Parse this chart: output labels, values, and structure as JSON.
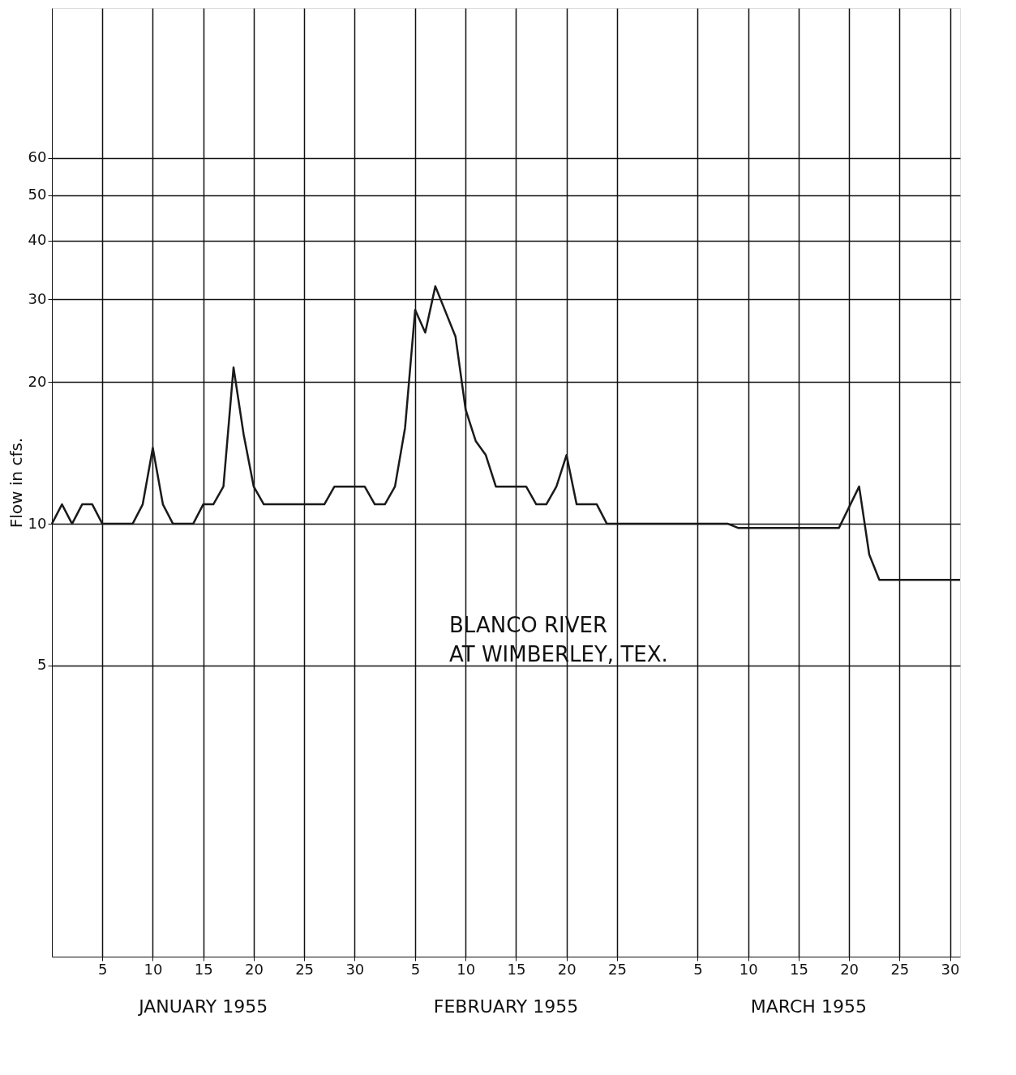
{
  "chart_data": {
    "type": "line",
    "title": "BLANCO RIVER\nAT WIMBERLEY, TEX.",
    "ylabel": "Flow in cfs.",
    "log": true,
    "grid": true,
    "line_style": "solid",
    "xlim": [
      "1954-12-31",
      "1955-03-31"
    ],
    "ylim": [
      1.2,
      125
    ],
    "xticks": [
      {
        "value": "1955-01-05",
        "label": "5"
      },
      {
        "value": "1955-01-10",
        "label": "10"
      },
      {
        "value": "1955-01-15",
        "label": "15"
      },
      {
        "value": "1955-01-20",
        "label": "20"
      },
      {
        "value": "1955-01-25",
        "label": "25"
      },
      {
        "value": "1955-01-30",
        "label": "30"
      },
      {
        "value": "1955-02-05",
        "label": "5"
      },
      {
        "value": "1955-02-10",
        "label": "10"
      },
      {
        "value": "1955-02-15",
        "label": "15"
      },
      {
        "value": "1955-02-20",
        "label": "20"
      },
      {
        "value": "1955-02-25",
        "label": "25"
      },
      {
        "value": "1955-03-05",
        "label": "5"
      },
      {
        "value": "1955-03-10",
        "label": "10"
      },
      {
        "value": "1955-03-15",
        "label": "15"
      },
      {
        "value": "1955-03-20",
        "label": "20"
      },
      {
        "value": "1955-03-25",
        "label": "25"
      },
      {
        "value": "1955-03-30",
        "label": "30"
      }
    ],
    "yticks": [
      5,
      10,
      20,
      30,
      40,
      50,
      60
    ],
    "annotations": [
      "JANUARY 1955",
      "FEBRUARY 1955",
      "MARCH 1955"
    ],
    "x": [
      "1954-12-31",
      "1955-01-01",
      "1955-01-02",
      "1955-01-03",
      "1955-01-04",
      "1955-01-05",
      "1955-01-08",
      "1955-01-09",
      "1955-01-10",
      "1955-01-11",
      "1955-01-12",
      "1955-01-14",
      "1955-01-15",
      "1955-01-16",
      "1955-01-17",
      "1955-01-18",
      "1955-01-19",
      "1955-01-20",
      "1955-01-21",
      "1955-01-27",
      "1955-01-28",
      "1955-01-31",
      "1955-02-01",
      "1955-02-02",
      "1955-02-03",
      "1955-02-04",
      "1955-02-05",
      "1955-02-06",
      "1955-02-07",
      "1955-02-09",
      "1955-02-10",
      "1955-02-11",
      "1955-02-12",
      "1955-02-13",
      "1955-02-16",
      "1955-02-17",
      "1955-02-18",
      "1955-02-19",
      "1955-02-20",
      "1955-02-21",
      "1955-02-23",
      "1955-02-24",
      "1955-03-08",
      "1955-03-09",
      "1955-03-19",
      "1955-03-21",
      "1955-03-22",
      "1955-03-23",
      "1955-03-31"
    ],
    "series": [
      {
        "color": "#1a1a1a",
        "values": [
          10,
          11,
          10,
          11,
          11,
          10,
          10,
          11,
          14.5,
          11,
          10,
          10,
          11,
          11,
          12,
          21.5,
          15.5,
          12,
          11,
          11,
          12,
          12,
          11,
          11,
          12,
          16,
          28.5,
          25.5,
          32,
          25,
          17.5,
          15,
          14,
          12,
          12,
          11,
          11,
          12,
          14,
          11,
          11,
          10,
          10,
          9.8,
          9.8,
          12,
          8.6,
          7.6,
          7.6
        ]
      }
    ]
  }
}
